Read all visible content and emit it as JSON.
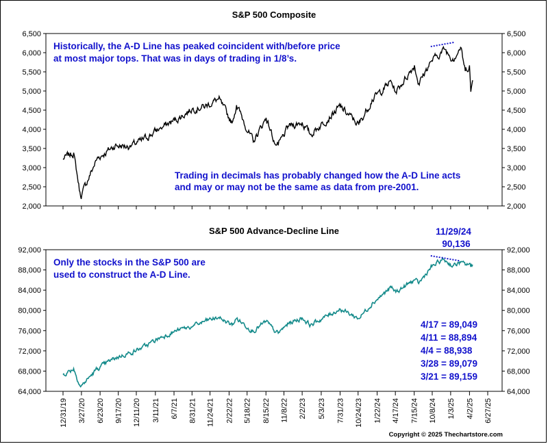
{
  "chart_data": [
    {
      "type": "line",
      "title": "S&P 500 Composite",
      "ylim": [
        2000,
        6500
      ],
      "yticks": [
        "2,000",
        "2,500",
        "3,000",
        "3,500",
        "4,000",
        "4,500",
        "5,000",
        "5,500",
        "6,000",
        "6,500"
      ],
      "ytick_values": [
        2000,
        2500,
        3000,
        3500,
        4000,
        4500,
        5000,
        5500,
        6000,
        6500
      ],
      "series": [
        {
          "color": "#000000",
          "x": [
            "2019-12-31",
            "2020-02-19",
            "2020-03-23",
            "2020-06-08",
            "2020-09-02",
            "2020-11-09",
            "2021-01-04",
            "2021-04-01",
            "2021-07-01",
            "2021-09-02",
            "2021-11-01",
            "2022-01-03",
            "2022-03-08",
            "2022-03-29",
            "2022-06-16",
            "2022-08-16",
            "2022-09-30",
            "2022-10-12",
            "2022-12-01",
            "2023-02-02",
            "2023-03-13",
            "2023-07-31",
            "2023-10-27",
            "2023-12-29",
            "2024-03-28",
            "2024-04-19",
            "2024-07-16",
            "2024-08-05",
            "2024-09-30",
            "2024-12-06",
            "2025-01-13",
            "2025-02-19",
            "2025-03-13",
            "2025-04-02",
            "2025-04-08",
            "2025-04-17"
          ],
          "y": [
            3230,
            3390,
            2240,
            3230,
            3580,
            3550,
            3700,
            4020,
            4300,
            4540,
            4600,
            4790,
            4170,
            4630,
            3670,
            4300,
            3590,
            3580,
            4080,
            4180,
            3860,
            4590,
            4120,
            4770,
            5250,
            4970,
            5670,
            5190,
            5760,
            6090,
            5840,
            6140,
            5520,
            5670,
            4980,
            5280
          ]
        }
      ],
      "annotations": [
        {
          "lines": [
            "Historically, the A-D Line has peaked coincident with/before price",
            "at most major tops.  That was in days of trading in 1/8’s."
          ]
        },
        {
          "lines": [
            "Trading in decimals has probably changed how the A-D Line acts",
            "and may or may not be the same as data from pre-2001."
          ]
        }
      ],
      "trendline": {
        "x": [
          "2024-10-01",
          "2025-01-20"
        ],
        "y": [
          6160,
          6270
        ],
        "style": "dotted",
        "color": "#1111cc"
      }
    },
    {
      "type": "line",
      "title": "S&P 500 Advance-Decline Line",
      "ylim": [
        64000,
        92000
      ],
      "yticks": [
        "64,000",
        "68,000",
        "72,000",
        "76,000",
        "80,000",
        "84,000",
        "88,000",
        "92,000"
      ],
      "ytick_values": [
        64000,
        68000,
        72000,
        76000,
        80000,
        84000,
        88000,
        92000
      ],
      "xticks": [
        "12/31/19",
        "3/27/20",
        "6/23/20",
        "9/17/20",
        "12/11/20",
        "3/11/21",
        "6/7/21",
        "8/31/21",
        "11/24/21",
        "2/22/22",
        "5/18/22",
        "8/15/22",
        "11/8/22",
        "2/2/23",
        "5/3/23",
        "7/31/23",
        "10/24/23",
        "1/22/24",
        "4/17/24",
        "7/15/24",
        "10/8/24",
        "1/3/25",
        "4/2/25",
        "6/27/25"
      ],
      "xtick_dates": [
        "2019-12-31",
        "2020-03-27",
        "2020-06-23",
        "2020-09-17",
        "2020-12-11",
        "2021-03-11",
        "2021-06-07",
        "2021-08-31",
        "2021-11-24",
        "2022-02-22",
        "2022-05-18",
        "2022-08-15",
        "2022-11-08",
        "2023-02-02",
        "2023-05-03",
        "2023-07-31",
        "2023-10-24",
        "2024-01-22",
        "2024-04-17",
        "2024-07-15",
        "2024-10-08",
        "2025-01-03",
        "2025-04-02",
        "2025-06-27"
      ],
      "series": [
        {
          "color": "#138a8a",
          "x": [
            "2019-12-31",
            "2020-02-19",
            "2020-03-23",
            "2020-06-08",
            "2020-09-02",
            "2020-11-09",
            "2021-01-04",
            "2021-04-01",
            "2021-07-01",
            "2021-09-02",
            "2021-11-08",
            "2022-01-05",
            "2022-03-08",
            "2022-03-29",
            "2022-06-16",
            "2022-08-16",
            "2022-09-30",
            "2022-10-12",
            "2022-12-01",
            "2023-02-02",
            "2023-03-13",
            "2023-07-31",
            "2023-10-27",
            "2023-12-29",
            "2024-03-28",
            "2024-04-19",
            "2024-07-16",
            "2024-08-05",
            "2024-09-30",
            "2024-11-29",
            "2025-01-13",
            "2025-02-19",
            "2025-03-13",
            "2025-04-02",
            "2025-04-08",
            "2025-04-17"
          ],
          "y": [
            67300,
            68500,
            64900,
            68400,
            70600,
            71600,
            72500,
            74600,
            76200,
            76800,
            78000,
            78600,
            77100,
            78400,
            75900,
            77800,
            75700,
            75500,
            77500,
            78500,
            77100,
            80300,
            78400,
            81400,
            84500,
            83600,
            86000,
            85300,
            88400,
            90136,
            88800,
            89500,
            89000,
            89300,
            88600,
            89049
          ]
        }
      ],
      "peak_label": [
        "11/29/24",
        "90,136"
      ],
      "annotations": [
        {
          "lines": [
            "Only the stocks in the S&P 500 are",
            "used to construct the A-D Line."
          ]
        }
      ],
      "readings": [
        "4/17 = 89,049",
        "4/11 = 88,894",
        "4/4 = 88,938",
        "3/28 = 89,079",
        "3/21 = 89,159"
      ],
      "trendline": {
        "x": [
          "2024-10-01",
          "2025-02-15"
        ],
        "y": [
          90800,
          89800
        ],
        "style": "dotted",
        "color": "#1111cc"
      }
    }
  ],
  "copyright": "Copyright © 2025 Thechartstore.com",
  "colors": {
    "annotation": "#1111cc",
    "price_line": "#000000",
    "ad_line": "#138a8a"
  }
}
